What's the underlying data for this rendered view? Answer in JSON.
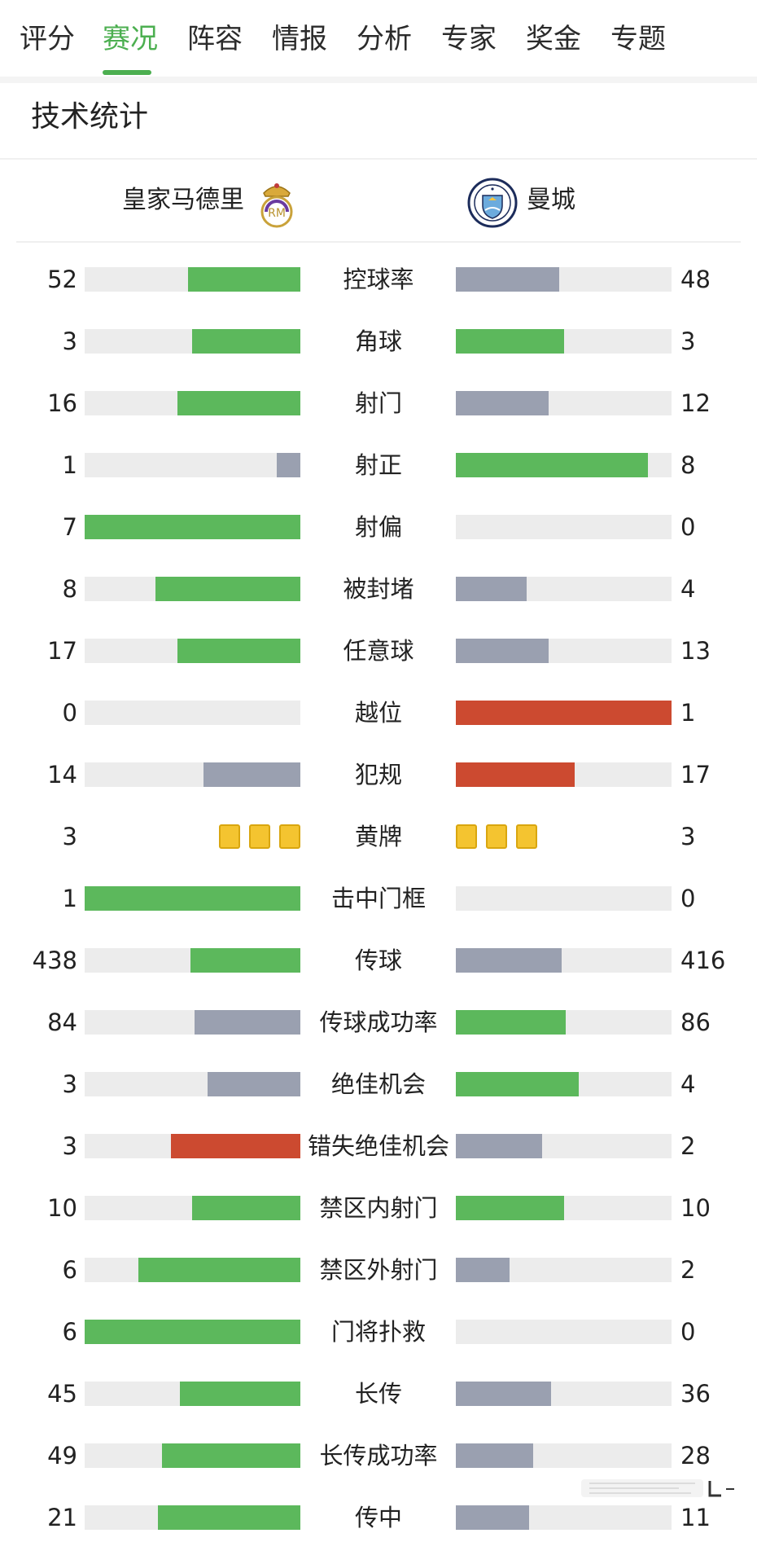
{
  "tabs": [
    {
      "label": "评分",
      "active": false
    },
    {
      "label": "赛况",
      "active": true
    },
    {
      "label": "阵容",
      "active": false
    },
    {
      "label": "情报",
      "active": false
    },
    {
      "label": "分析",
      "active": false
    },
    {
      "label": "专家",
      "active": false
    },
    {
      "label": "奖金",
      "active": false
    },
    {
      "label": "专题",
      "active": false
    }
  ],
  "section_title": "技术统计",
  "home_team": {
    "name": "皇家马德里",
    "crest": "real-madrid-crest-icon"
  },
  "away_team": {
    "name": "曼城",
    "crest": "man-city-crest-icon"
  },
  "colors": {
    "accent": "#4caf50",
    "better": "#5cb85c",
    "worse": "#9aa0b0",
    "negative": "#cc4a30",
    "track": "#ececec",
    "yellow_card": "#f4c430"
  },
  "stats": [
    {
      "label": "控球率",
      "home": "52",
      "away": "48",
      "home_ratio": 0.52,
      "away_ratio": 0.48,
      "home_color": "better",
      "away_color": "worse"
    },
    {
      "label": "角球",
      "home": "3",
      "away": "3",
      "home_ratio": 0.5,
      "away_ratio": 0.5,
      "home_color": "better",
      "away_color": "better"
    },
    {
      "label": "射门",
      "home": "16",
      "away": "12",
      "home_ratio": 0.57,
      "away_ratio": 0.43,
      "home_color": "better",
      "away_color": "worse"
    },
    {
      "label": "射正",
      "home": "1",
      "away": "8",
      "home_ratio": 0.11,
      "away_ratio": 0.89,
      "home_color": "worse",
      "away_color": "better"
    },
    {
      "label": "射偏",
      "home": "7",
      "away": "0",
      "home_ratio": 1.0,
      "away_ratio": 0.0,
      "home_color": "better",
      "away_color": "worse"
    },
    {
      "label": "被封堵",
      "home": "8",
      "away": "4",
      "home_ratio": 0.67,
      "away_ratio": 0.33,
      "home_color": "better",
      "away_color": "worse"
    },
    {
      "label": "任意球",
      "home": "17",
      "away": "13",
      "home_ratio": 0.57,
      "away_ratio": 0.43,
      "home_color": "better",
      "away_color": "worse"
    },
    {
      "label": "越位",
      "home": "0",
      "away": "1",
      "home_ratio": 0.0,
      "away_ratio": 1.0,
      "home_color": "worse",
      "away_color": "negative"
    },
    {
      "label": "犯规",
      "home": "14",
      "away": "17",
      "home_ratio": 0.45,
      "away_ratio": 0.55,
      "home_color": "worse",
      "away_color": "negative"
    },
    {
      "label": "黄牌",
      "home": "3",
      "away": "3",
      "cards": true,
      "home_cards": 3,
      "away_cards": 3
    },
    {
      "label": "击中门框",
      "home": "1",
      "away": "0",
      "home_ratio": 1.0,
      "away_ratio": 0.0,
      "home_color": "better",
      "away_color": "worse"
    },
    {
      "label": "传球",
      "home": "438",
      "away": "416",
      "home_ratio": 0.51,
      "away_ratio": 0.49,
      "home_color": "better",
      "away_color": "worse"
    },
    {
      "label": "传球成功率",
      "home": "84",
      "away": "86",
      "home_ratio": 0.49,
      "away_ratio": 0.51,
      "home_color": "worse",
      "away_color": "better"
    },
    {
      "label": "绝佳机会",
      "home": "3",
      "away": "4",
      "home_ratio": 0.43,
      "away_ratio": 0.57,
      "home_color": "worse",
      "away_color": "better"
    },
    {
      "label": "错失绝佳机会",
      "home": "3",
      "away": "2",
      "home_ratio": 0.6,
      "away_ratio": 0.4,
      "home_color": "negative",
      "away_color": "worse"
    },
    {
      "label": "禁区内射门",
      "home": "10",
      "away": "10",
      "home_ratio": 0.5,
      "away_ratio": 0.5,
      "home_color": "better",
      "away_color": "better"
    },
    {
      "label": "禁区外射门",
      "home": "6",
      "away": "2",
      "home_ratio": 0.75,
      "away_ratio": 0.25,
      "home_color": "better",
      "away_color": "worse"
    },
    {
      "label": "门将扑救",
      "home": "6",
      "away": "0",
      "home_ratio": 1.0,
      "away_ratio": 0.0,
      "home_color": "better",
      "away_color": "worse"
    },
    {
      "label": "长传",
      "home": "45",
      "away": "36",
      "home_ratio": 0.56,
      "away_ratio": 0.44,
      "home_color": "better",
      "away_color": "worse"
    },
    {
      "label": "长传成功率",
      "home": "49",
      "away": "28",
      "home_ratio": 0.64,
      "away_ratio": 0.36,
      "home_color": "better",
      "away_color": "worse"
    },
    {
      "label": "传中",
      "home": "21",
      "away": "11",
      "home_ratio": 0.66,
      "away_ratio": 0.34,
      "home_color": "better",
      "away_color": "worse"
    }
  ]
}
